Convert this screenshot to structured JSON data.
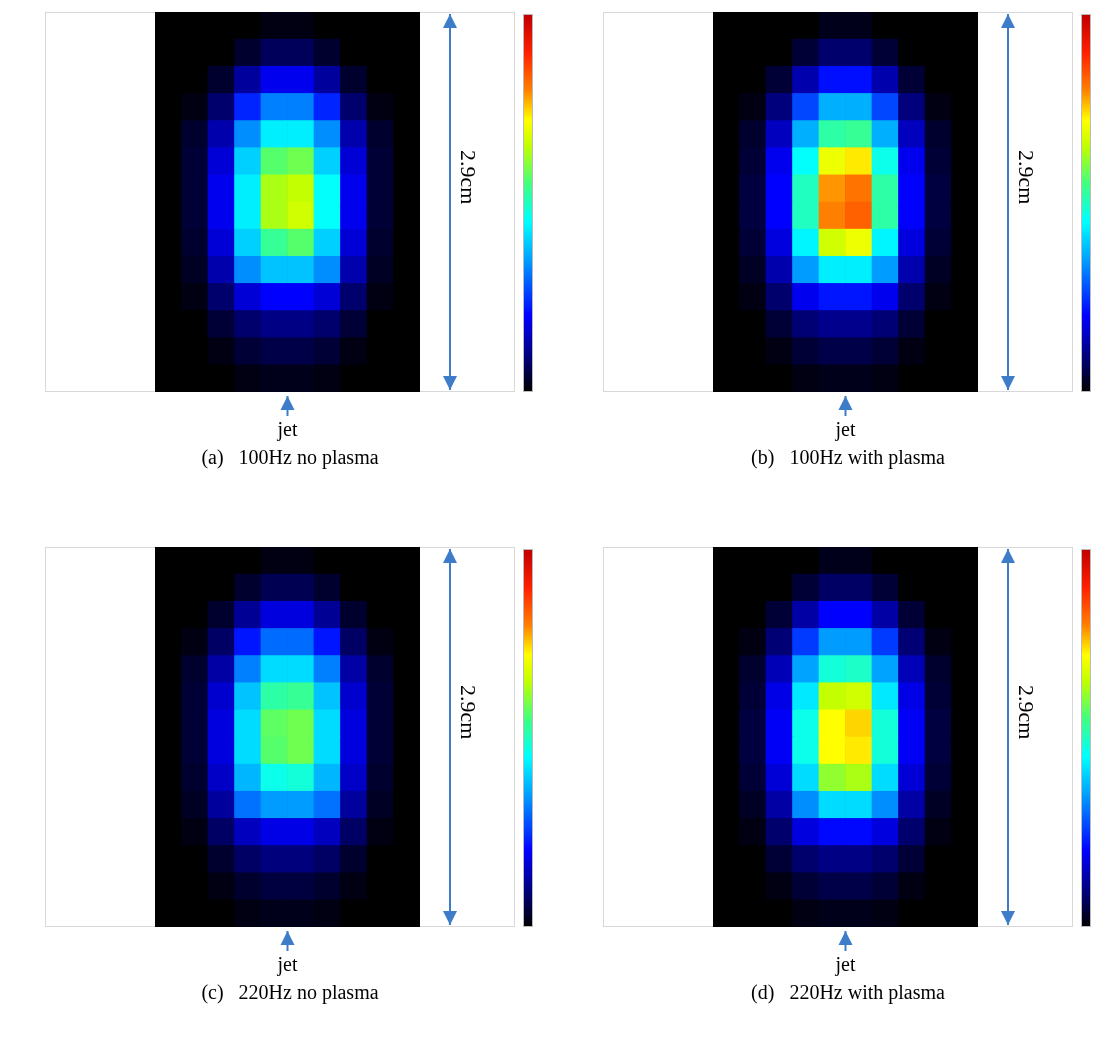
{
  "chart_data": [
    {
      "type": "heatmap",
      "title": "(a)   100Hz no plasma",
      "tick_labels": false,
      "annotations": [
        "2.9cm",
        "jet"
      ],
      "colorbar": {
        "range": [
          0,
          150
        ]
      },
      "cells": [
        [
          0,
          0,
          0,
          0,
          2,
          2,
          0,
          0,
          0,
          0
        ],
        [
          0,
          0,
          0,
          5,
          10,
          10,
          5,
          0,
          0,
          0
        ],
        [
          0,
          0,
          5,
          18,
          28,
          28,
          18,
          5,
          0,
          0
        ],
        [
          0,
          2,
          12,
          35,
          48,
          48,
          35,
          12,
          2,
          0
        ],
        [
          0,
          5,
          20,
          50,
          65,
          65,
          50,
          20,
          5,
          0
        ],
        [
          0,
          6,
          25,
          60,
          85,
          88,
          60,
          25,
          6,
          0
        ],
        [
          0,
          6,
          28,
          65,
          95,
          98,
          68,
          28,
          6,
          0
        ],
        [
          0,
          6,
          28,
          65,
          95,
          100,
          68,
          28,
          6,
          0
        ],
        [
          0,
          5,
          25,
          60,
          80,
          85,
          60,
          25,
          5,
          0
        ],
        [
          0,
          4,
          20,
          50,
          58,
          58,
          50,
          20,
          4,
          0
        ],
        [
          0,
          2,
          12,
          25,
          30,
          30,
          25,
          12,
          2,
          0
        ],
        [
          0,
          0,
          6,
          12,
          15,
          15,
          12,
          6,
          0,
          0
        ],
        [
          0,
          0,
          2,
          6,
          8,
          8,
          6,
          2,
          0,
          0
        ],
        [
          0,
          0,
          0,
          2,
          3,
          3,
          2,
          0,
          0,
          0
        ]
      ]
    },
    {
      "type": "heatmap",
      "title": "(b)   100Hz with plasma",
      "tick_labels": false,
      "annotations": [
        "2.9cm",
        "jet"
      ],
      "colorbar": {
        "range": [
          0,
          150
        ]
      },
      "cells": [
        [
          0,
          0,
          0,
          0,
          3,
          3,
          0,
          0,
          0,
          0
        ],
        [
          0,
          0,
          0,
          6,
          12,
          12,
          6,
          0,
          0,
          0
        ],
        [
          0,
          0,
          6,
          20,
          32,
          32,
          20,
          6,
          0,
          0
        ],
        [
          0,
          2,
          14,
          40,
          55,
          55,
          40,
          14,
          2,
          0
        ],
        [
          0,
          5,
          22,
          55,
          78,
          80,
          55,
          22,
          5,
          0
        ],
        [
          0,
          6,
          28,
          68,
          105,
          110,
          70,
          28,
          6,
          0
        ],
        [
          0,
          7,
          30,
          75,
          118,
          122,
          78,
          30,
          7,
          0
        ],
        [
          0,
          7,
          30,
          75,
          120,
          125,
          78,
          30,
          7,
          0
        ],
        [
          0,
          6,
          26,
          66,
          100,
          105,
          66,
          26,
          6,
          0
        ],
        [
          0,
          4,
          20,
          52,
          65,
          65,
          52,
          20,
          4,
          0
        ],
        [
          0,
          2,
          12,
          28,
          33,
          33,
          28,
          12,
          2,
          0
        ],
        [
          0,
          0,
          6,
          13,
          16,
          16,
          13,
          6,
          0,
          0
        ],
        [
          0,
          0,
          2,
          6,
          8,
          8,
          6,
          2,
          0,
          0
        ],
        [
          0,
          0,
          0,
          2,
          3,
          3,
          2,
          0,
          0,
          0
        ]
      ]
    },
    {
      "type": "heatmap",
      "title": "(c)   220Hz no plasma",
      "tick_labels": false,
      "annotations": [
        "2.9cm",
        "jet"
      ],
      "colorbar": {
        "range": [
          0,
          150
        ]
      },
      "cells": [
        [
          0,
          0,
          0,
          0,
          2,
          2,
          0,
          0,
          0,
          0
        ],
        [
          0,
          0,
          0,
          5,
          9,
          9,
          5,
          0,
          0,
          0
        ],
        [
          0,
          0,
          5,
          17,
          26,
          26,
          17,
          5,
          0,
          0
        ],
        [
          0,
          2,
          11,
          33,
          45,
          45,
          33,
          11,
          2,
          0
        ],
        [
          0,
          5,
          19,
          48,
          62,
          62,
          48,
          19,
          5,
          0
        ],
        [
          0,
          6,
          24,
          58,
          78,
          80,
          58,
          24,
          6,
          0
        ],
        [
          0,
          6,
          26,
          62,
          86,
          88,
          62,
          26,
          6,
          0
        ],
        [
          0,
          6,
          26,
          62,
          85,
          88,
          62,
          26,
          6,
          0
        ],
        [
          0,
          5,
          23,
          56,
          70,
          72,
          56,
          23,
          5,
          0
        ],
        [
          0,
          4,
          18,
          46,
          52,
          52,
          46,
          18,
          4,
          0
        ],
        [
          0,
          2,
          11,
          22,
          27,
          27,
          22,
          11,
          2,
          0
        ],
        [
          0,
          0,
          5,
          11,
          14,
          14,
          11,
          5,
          0,
          0
        ],
        [
          0,
          0,
          2,
          5,
          7,
          7,
          5,
          2,
          0,
          0
        ],
        [
          0,
          0,
          0,
          2,
          3,
          3,
          2,
          0,
          0,
          0
        ]
      ]
    },
    {
      "type": "heatmap",
      "title": "(d)   220Hz with plasma",
      "tick_labels": false,
      "annotations": [
        "2.9cm",
        "jet"
      ],
      "colorbar": {
        "range": [
          0,
          150
        ]
      },
      "cells": [
        [
          0,
          0,
          0,
          0,
          3,
          3,
          0,
          0,
          0,
          0
        ],
        [
          0,
          0,
          0,
          6,
          11,
          11,
          6,
          0,
          0,
          0
        ],
        [
          0,
          0,
          6,
          19,
          30,
          30,
          19,
          6,
          0,
          0
        ],
        [
          0,
          2,
          13,
          38,
          52,
          52,
          38,
          13,
          2,
          0
        ],
        [
          0,
          5,
          21,
          53,
          72,
          74,
          53,
          21,
          5,
          0
        ],
        [
          0,
          6,
          27,
          64,
          98,
          100,
          64,
          27,
          6,
          0
        ],
        [
          0,
          7,
          29,
          70,
          108,
          112,
          72,
          29,
          7,
          0
        ],
        [
          0,
          7,
          29,
          70,
          108,
          110,
          72,
          29,
          7,
          0
        ],
        [
          0,
          6,
          25,
          62,
          92,
          95,
          62,
          25,
          6,
          0
        ],
        [
          0,
          4,
          19,
          50,
          62,
          62,
          50,
          19,
          4,
          0
        ],
        [
          0,
          2,
          12,
          26,
          31,
          31,
          26,
          12,
          2,
          0
        ],
        [
          0,
          0,
          6,
          12,
          15,
          15,
          12,
          6,
          0,
          0
        ],
        [
          0,
          0,
          2,
          6,
          8,
          8,
          6,
          2,
          0,
          0
        ],
        [
          0,
          0,
          0,
          2,
          3,
          3,
          2,
          0,
          0,
          0
        ]
      ]
    }
  ]
}
